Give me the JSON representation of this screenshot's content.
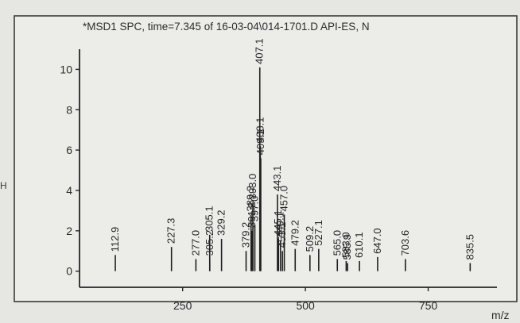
{
  "chart_data": {
    "type": "bar",
    "title": "*MSD1 SPC, time=7.345 of 16-03-04\\014-1701.D   API-ES, N",
    "xlabel": "m/z",
    "ylabel": "",
    "left_edge_text": "H",
    "xlim": [
      40,
      890
    ],
    "ylim": [
      -0.8,
      11
    ],
    "xticks": [
      250,
      500,
      750
    ],
    "yticks": [
      0,
      2,
      4,
      6,
      8,
      10
    ],
    "grid": false,
    "peaks": [
      {
        "mz": 112.9,
        "intensity": 0.8,
        "label": "112.9"
      },
      {
        "mz": 227.3,
        "intensity": 1.2,
        "label": "227.3"
      },
      {
        "mz": 277.0,
        "intensity": 0.6,
        "label": "277.0"
      },
      {
        "mz": 305.2,
        "intensity": 0.6,
        "label": "305.2"
      },
      {
        "mz": 305.1,
        "intensity": 1.8,
        "label": "305.1"
      },
      {
        "mz": 329.2,
        "intensity": 1.6,
        "label": "329.2"
      },
      {
        "mz": 379.2,
        "intensity": 1.0,
        "label": "379.2"
      },
      {
        "mz": 389.3,
        "intensity": 2.8,
        "label": "389.3"
      },
      {
        "mz": 391.2,
        "intensity": 2.0,
        "label": "391.2"
      },
      {
        "mz": 393.0,
        "intensity": 3.4,
        "label": "393.0"
      },
      {
        "mz": 397.0,
        "intensity": 2.3,
        "label": "397.0"
      },
      {
        "mz": 407.1,
        "intensity": 10.1,
        "label": "407.1"
      },
      {
        "mz": 408.1,
        "intensity": 6.2,
        "label": "408.1"
      },
      {
        "mz": 409.1,
        "intensity": 5.6,
        "label": "409.1"
      },
      {
        "mz": 443.1,
        "intensity": 3.8,
        "label": "443.1"
      },
      {
        "mz": 457.0,
        "intensity": 2.8,
        "label": "457.0"
      },
      {
        "mz": 445.1,
        "intensity": 1.6,
        "label": "445.1"
      },
      {
        "mz": 449.1,
        "intensity": 1.5,
        "label": "449.1"
      },
      {
        "mz": 453.1,
        "intensity": 1.0,
        "label": "453.1"
      },
      {
        "mz": 479.2,
        "intensity": 1.1,
        "label": "479.2"
      },
      {
        "mz": 509.2,
        "intensity": 0.8,
        "label": "509.2"
      },
      {
        "mz": 527.1,
        "intensity": 1.1,
        "label": "527.1"
      },
      {
        "mz": 565.0,
        "intensity": 0.6,
        "label": "565.0"
      },
      {
        "mz": 583.0,
        "intensity": 0.5,
        "label": "583.0"
      },
      {
        "mz": 585.9,
        "intensity": 0.4,
        "label": "585.9"
      },
      {
        "mz": 610.1,
        "intensity": 0.5,
        "label": "610.1"
      },
      {
        "mz": 647.0,
        "intensity": 0.7,
        "label": "647.0"
      },
      {
        "mz": 703.6,
        "intensity": 0.6,
        "label": "703.6"
      },
      {
        "mz": 835.5,
        "intensity": 0.4,
        "label": "835.5"
      }
    ]
  }
}
